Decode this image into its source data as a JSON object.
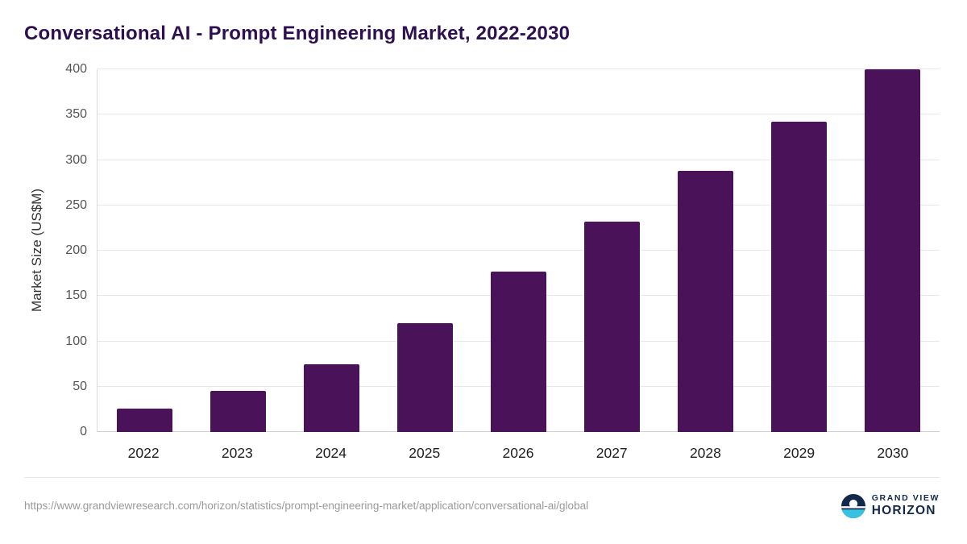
{
  "title": "Conversational AI - Prompt Engineering Market, 2022-2030",
  "source_url": "https://www.grandviewresearch.com/horizon/statistics/prompt-engineering-market/application/conversational-ai/global",
  "logo": {
    "line1": "GRAND VIEW",
    "line2": "HORIZON"
  },
  "colors": {
    "bar": "#4a1259",
    "title": "#2e0f4f",
    "grid": "#e8e8e8",
    "logo_navy": "#13294b",
    "logo_teal": "#38c2e2"
  },
  "chart_data": {
    "type": "bar",
    "title": "Conversational AI - Prompt Engineering Market, 2022-2030",
    "categories": [
      "2022",
      "2023",
      "2024",
      "2025",
      "2026",
      "2027",
      "2028",
      "2029",
      "2030"
    ],
    "values": [
      26,
      45,
      75,
      120,
      177,
      232,
      288,
      342,
      400
    ],
    "xlabel": "",
    "ylabel": "Market Size (US$M)",
    "ylim": [
      0,
      400
    ],
    "ytick_interval": 50,
    "yticks": [
      0,
      50,
      100,
      150,
      200,
      250,
      300,
      350,
      400
    ],
    "grid": true,
    "legend": "none",
    "bar_color": "#4a1259"
  }
}
